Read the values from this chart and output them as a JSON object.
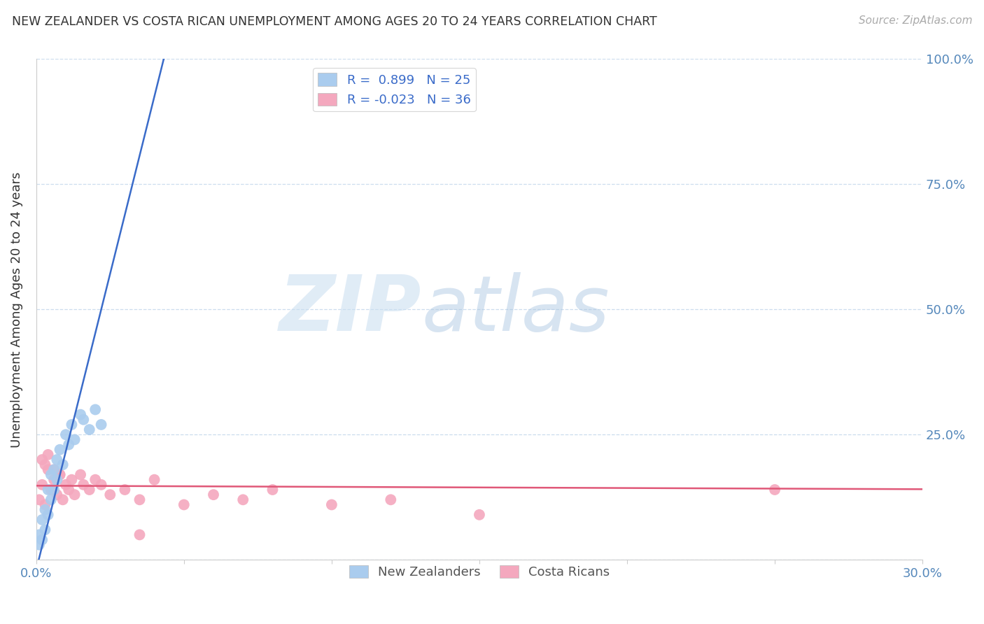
{
  "title": "NEW ZEALANDER VS COSTA RICAN UNEMPLOYMENT AMONG AGES 20 TO 24 YEARS CORRELATION CHART",
  "source": "Source: ZipAtlas.com",
  "ylabel": "Unemployment Among Ages 20 to 24 years",
  "xlim": [
    0.0,
    0.3
  ],
  "ylim": [
    0.0,
    1.0
  ],
  "xticks": [
    0.0,
    0.05,
    0.1,
    0.15,
    0.2,
    0.25,
    0.3
  ],
  "xticklabels": [
    "0.0%",
    "",
    "",
    "",
    "",
    "",
    "30.0%"
  ],
  "yticks": [
    0.0,
    0.25,
    0.5,
    0.75,
    1.0
  ],
  "yticklabels": [
    "",
    "25.0%",
    "50.0%",
    "75.0%",
    "100.0%"
  ],
  "nz_R": 0.899,
  "nz_N": 25,
  "cr_R": -0.023,
  "cr_N": 36,
  "nz_color": "#aaccee",
  "cr_color": "#f4a8be",
  "nz_line_color": "#3a6bc9",
  "cr_line_color": "#e05878",
  "nz_scatter_x": [
    0.001,
    0.001,
    0.002,
    0.002,
    0.003,
    0.003,
    0.004,
    0.004,
    0.005,
    0.005,
    0.006,
    0.006,
    0.007,
    0.007,
    0.008,
    0.009,
    0.01,
    0.011,
    0.012,
    0.013,
    0.015,
    0.016,
    0.018,
    0.02,
    0.022
  ],
  "nz_scatter_y": [
    0.05,
    0.03,
    0.08,
    0.04,
    0.1,
    0.06,
    0.14,
    0.09,
    0.17,
    0.12,
    0.18,
    0.14,
    0.2,
    0.16,
    0.22,
    0.19,
    0.25,
    0.23,
    0.27,
    0.24,
    0.29,
    0.28,
    0.26,
    0.3,
    0.27
  ],
  "nz_line_x": [
    0.0,
    0.044
  ],
  "nz_line_y": [
    -0.02,
    1.02
  ],
  "cr_scatter_x": [
    0.001,
    0.002,
    0.003,
    0.004,
    0.005,
    0.006,
    0.007,
    0.008,
    0.009,
    0.01,
    0.011,
    0.012,
    0.013,
    0.015,
    0.016,
    0.018,
    0.02,
    0.022,
    0.025,
    0.03,
    0.035,
    0.04,
    0.05,
    0.06,
    0.07,
    0.08,
    0.1,
    0.12,
    0.15,
    0.002,
    0.003,
    0.004,
    0.006,
    0.008,
    0.25,
    0.035
  ],
  "cr_scatter_y": [
    0.12,
    0.15,
    0.11,
    0.18,
    0.14,
    0.16,
    0.13,
    0.17,
    0.12,
    0.15,
    0.14,
    0.16,
    0.13,
    0.17,
    0.15,
    0.14,
    0.16,
    0.15,
    0.13,
    0.14,
    0.12,
    0.16,
    0.11,
    0.13,
    0.12,
    0.14,
    0.11,
    0.12,
    0.09,
    0.2,
    0.19,
    0.21,
    0.18,
    0.17,
    0.14,
    0.05
  ],
  "cr_line_x": [
    0.0,
    0.3
  ],
  "cr_line_y": [
    0.148,
    0.141
  ]
}
